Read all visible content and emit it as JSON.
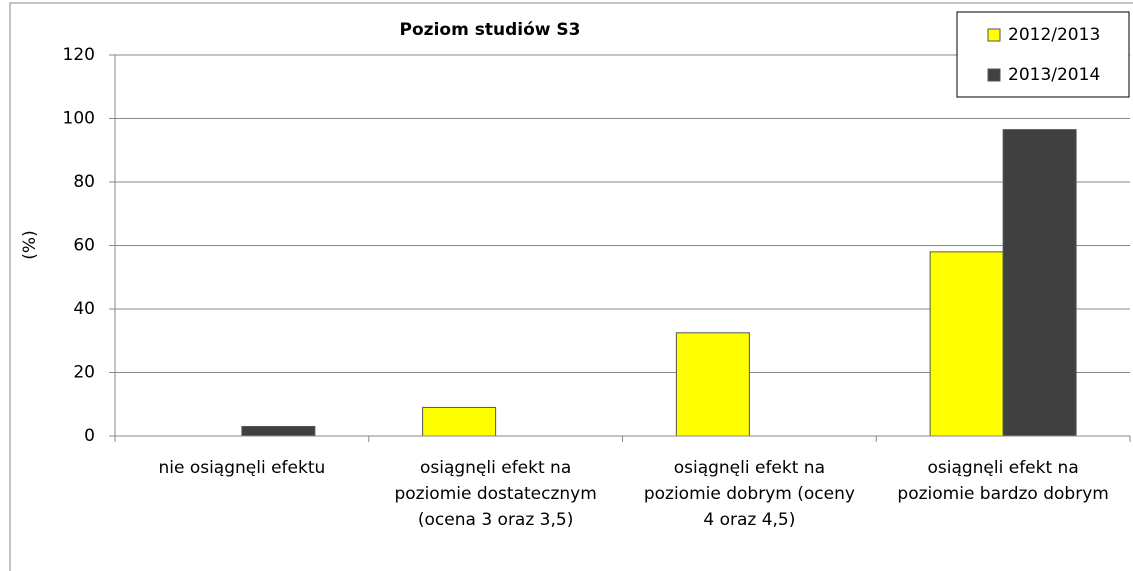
{
  "chart_data": {
    "type": "bar",
    "title": "Poziom studiów S3",
    "y_label": "(%)",
    "categories": [
      "nie osiągnęli efektu",
      "osiągnęli efekt na poziomie dostatecznym (ocena 3 oraz 3,5)",
      "osiągnęli efekt na poziomie dobrym (oceny 4 oraz 4,5)",
      "osiągnęli efekt na poziomie bardzo dobrym"
    ],
    "series": [
      {
        "name": "2012/2013",
        "color": "#ffff00",
        "values": [
          0,
          9,
          32.5,
          58
        ]
      },
      {
        "name": "2013/2014",
        "color": "#404040",
        "values": [
          3,
          0,
          0,
          96.5
        ]
      }
    ],
    "ylim": [
      0,
      120
    ],
    "yticks": [
      0,
      20,
      40,
      60,
      80,
      100,
      120
    ],
    "grid": true,
    "legend": "top-right"
  }
}
